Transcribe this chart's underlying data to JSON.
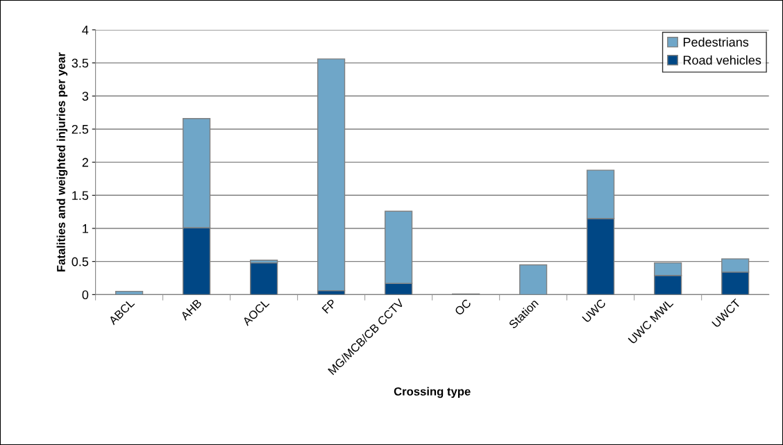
{
  "chart_data": {
    "type": "bar",
    "stacked": true,
    "xlabel": "Crossing type",
    "ylabel": "Fatalities and weighted injuries per year",
    "categories": [
      "ABCL",
      "AHB",
      "AOCL",
      "FP",
      "MG/MCB/CB CCTV",
      "OC",
      "Station",
      "UWC",
      "UWC MWL",
      "UWCT"
    ],
    "series": [
      {
        "name": "Road vehicles",
        "color": "#004785",
        "values": [
          null,
          1.01,
          0.48,
          0.06,
          0.17,
          0.0,
          0.0,
          1.15,
          0.29,
          0.34
        ]
      },
      {
        "name": "Pedestrians",
        "color": "#6fa6c8",
        "values": [
          0.05,
          1.65,
          0.04,
          3.5,
          1.09,
          0.01,
          0.45,
          0.73,
          0.19,
          0.2
        ]
      }
    ],
    "ylim": [
      0,
      4
    ],
    "yticks": [
      0,
      0.5,
      1,
      1.5,
      2,
      2.5,
      3,
      3.5,
      4
    ],
    "grid": "y",
    "legend": "top right"
  }
}
